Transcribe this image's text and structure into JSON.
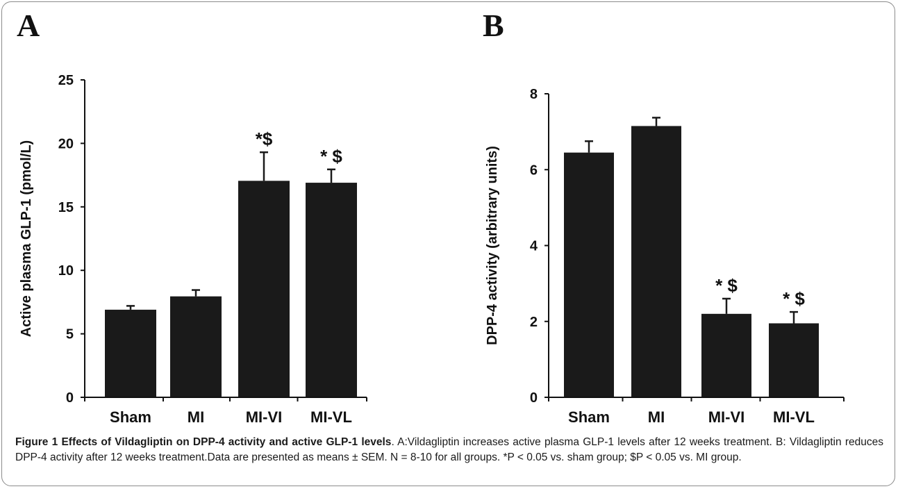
{
  "panels": {
    "a_label": "A",
    "b_label": "B"
  },
  "chart_data": [
    {
      "type": "bar",
      "categories": [
        "Sham",
        "MI",
        "MI-VI",
        "MI-VL"
      ],
      "values": [
        6.9,
        7.95,
        17.05,
        16.9
      ],
      "errors": [
        0.3,
        0.5,
        2.25,
        1.05
      ],
      "annotations": [
        "",
        "",
        "*$",
        "* $"
      ],
      "ylabel": "Active plasma GLP-1 (pmol/L)",
      "ylim": [
        0,
        25
      ],
      "yticks": [
        "0",
        "5",
        "10",
        "15",
        "20",
        "25"
      ],
      "bar_color": "#1a1a1a",
      "grid": false
    },
    {
      "type": "bar",
      "categories": [
        "Sham",
        "MI",
        "MI-VI",
        "MI-VL"
      ],
      "values": [
        6.45,
        7.15,
        2.2,
        1.95
      ],
      "errors": [
        0.3,
        0.22,
        0.4,
        0.3
      ],
      "annotations": [
        "",
        "",
        "* $",
        "* $"
      ],
      "ylabel": "DPP-4 activity (arbitrary units)",
      "ylim": [
        0,
        8
      ],
      "yticks": [
        "0",
        "2",
        "4",
        "6",
        "8"
      ],
      "bar_color": "#1a1a1a",
      "grid": false
    }
  ],
  "caption": {
    "title": "Figure 1 Effects of Vildagliptin on DPP-4 activity and active GLP-1 levels",
    "body": ". A:Vildagliptin increases active plasma GLP-1 levels after 12 weeks treatment. B: Vildagliptin reduces DPP-4 activity after 12 weeks treatment.Data are presented as means ± SEM. N = 8-10 for all groups. *P < 0.05 vs. sham group; $P < 0.05 vs. MI group."
  }
}
